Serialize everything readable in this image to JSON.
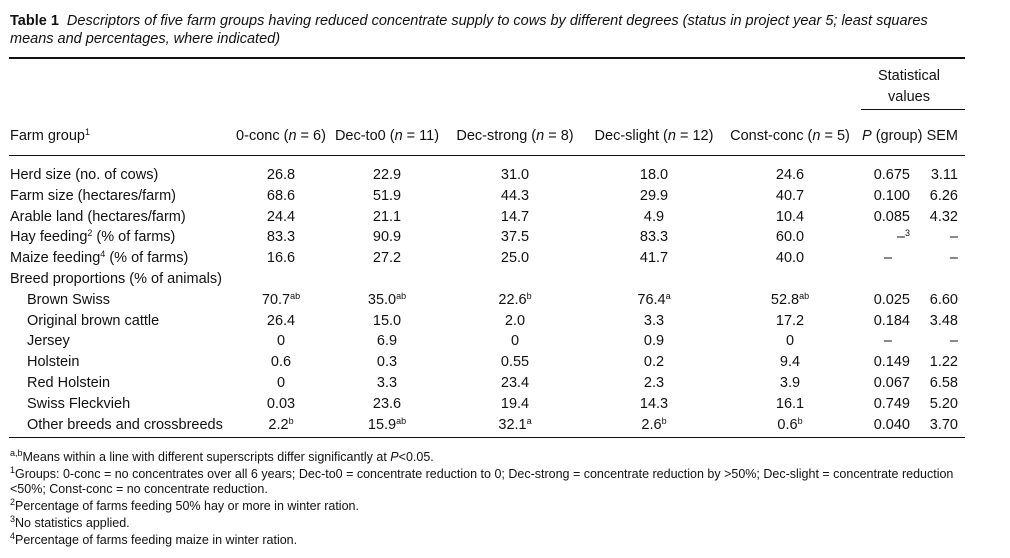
{
  "caption": {
    "label": "Table 1",
    "text": "Descriptors of five farm groups having reduced concentrate supply to cows by different degrees (status in project year 5; least squares means and percentages, where indicated)"
  },
  "header": {
    "stat_group": "Statistical values",
    "stat_line1": "Statistical",
    "stat_line2": "values",
    "farm_group": "Farm group",
    "farm_group_sup": "1",
    "columns": [
      {
        "name": "0-conc",
        "n_label": "n",
        "n_rest": " = 6)"
      },
      {
        "name": "Dec-to0",
        "n_label": "n",
        "n_rest": " = 11)"
      },
      {
        "name": "Dec-strong",
        "n_label": "n",
        "n_rest": " = 8)"
      },
      {
        "name": "Dec-slight",
        "n_label": "n",
        "n_rest": " = 12)"
      },
      {
        "name": "Const-conc",
        "n_label": "n",
        "n_rest": " = 5)"
      }
    ],
    "p_italic": "P",
    "p_rest": " (group)",
    "sem": "SEM"
  },
  "rows": [
    {
      "label": "Herd size (no. of cows)",
      "label_sup": "",
      "label_after": "",
      "indent": false,
      "values": [
        [
          "26.8",
          ""
        ],
        [
          "22.9",
          ""
        ],
        [
          "31.0",
          ""
        ],
        [
          "18.0",
          ""
        ],
        [
          "24.6",
          ""
        ]
      ],
      "p": "0.675",
      "p_sup": "",
      "sem": "3.11"
    },
    {
      "label": "Farm size (hectares/farm)",
      "label_sup": "",
      "label_after": "",
      "indent": false,
      "values": [
        [
          "68.6",
          ""
        ],
        [
          "51.9",
          ""
        ],
        [
          "44.3",
          ""
        ],
        [
          "29.9",
          ""
        ],
        [
          "40.7",
          ""
        ]
      ],
      "p": "0.100",
      "p_sup": "",
      "sem": "6.26"
    },
    {
      "label": "Arable land (hectares/farm)",
      "label_sup": "",
      "label_after": "",
      "indent": false,
      "values": [
        [
          "24.4",
          ""
        ],
        [
          "21.1",
          ""
        ],
        [
          "14.7",
          ""
        ],
        [
          "4.9",
          ""
        ],
        [
          "10.4",
          ""
        ]
      ],
      "p": "0.085",
      "p_sup": "",
      "sem": "4.32"
    },
    {
      "label": "Hay feeding",
      "label_sup": "2",
      "label_after": " (% of farms)",
      "indent": false,
      "values": [
        [
          "83.3",
          ""
        ],
        [
          "90.9",
          ""
        ],
        [
          "37.5",
          ""
        ],
        [
          "83.3",
          ""
        ],
        [
          "60.0",
          ""
        ]
      ],
      "p": "–",
      "p_sup": "3",
      "sem": "–"
    },
    {
      "label": "Maize feeding",
      "label_sup": "4",
      "label_after": " (% of farms)",
      "indent": false,
      "values": [
        [
          "16.6",
          ""
        ],
        [
          "27.2",
          ""
        ],
        [
          "25.0",
          ""
        ],
        [
          "41.7",
          ""
        ],
        [
          "40.0",
          ""
        ]
      ],
      "p": "–",
      "p_sup": "",
      "sem": "–"
    },
    {
      "label": "Breed proportions (% of animals)",
      "label_sup": "",
      "label_after": "",
      "indent": false,
      "values": [
        [
          "",
          ""
        ],
        [
          "",
          ""
        ],
        [
          "",
          ""
        ],
        [
          "",
          ""
        ],
        [
          "",
          ""
        ]
      ],
      "p": "",
      "p_sup": "",
      "sem": ""
    },
    {
      "label": "Brown Swiss",
      "label_sup": "",
      "label_after": "",
      "indent": true,
      "values": [
        [
          "70.7",
          "ab"
        ],
        [
          "35.0",
          "ab"
        ],
        [
          "22.6",
          "b"
        ],
        [
          "76.4",
          "a"
        ],
        [
          "52.8",
          "ab"
        ]
      ],
      "p": "0.025",
      "p_sup": "",
      "sem": "6.60"
    },
    {
      "label": "Original brown cattle",
      "label_sup": "",
      "label_after": "",
      "indent": true,
      "values": [
        [
          "26.4",
          ""
        ],
        [
          "15.0",
          ""
        ],
        [
          "2.0",
          ""
        ],
        [
          "3.3",
          ""
        ],
        [
          "17.2",
          ""
        ]
      ],
      "p": "0.184",
      "p_sup": "",
      "sem": "3.48"
    },
    {
      "label": "Jersey",
      "label_sup": "",
      "label_after": "",
      "indent": true,
      "values": [
        [
          "0",
          ""
        ],
        [
          "6.9",
          ""
        ],
        [
          "0",
          ""
        ],
        [
          "0.9",
          ""
        ],
        [
          "0",
          ""
        ]
      ],
      "p": "–",
      "p_sup": "",
      "sem": "–"
    },
    {
      "label": "Holstein",
      "label_sup": "",
      "label_after": "",
      "indent": true,
      "values": [
        [
          "0.6",
          ""
        ],
        [
          "0.3",
          ""
        ],
        [
          "0.55",
          ""
        ],
        [
          "0.2",
          ""
        ],
        [
          "9.4",
          ""
        ]
      ],
      "p": "0.149",
      "p_sup": "",
      "sem": "1.22"
    },
    {
      "label": "Red Holstein",
      "label_sup": "",
      "label_after": "",
      "indent": true,
      "values": [
        [
          "0",
          ""
        ],
        [
          "3.3",
          ""
        ],
        [
          "23.4",
          ""
        ],
        [
          "2.3",
          ""
        ],
        [
          "3.9",
          ""
        ]
      ],
      "p": "0.067",
      "p_sup": "",
      "sem": "6.58"
    },
    {
      "label": "Swiss Fleckvieh",
      "label_sup": "",
      "label_after": "",
      "indent": true,
      "values": [
        [
          "0.03",
          ""
        ],
        [
          "23.6",
          ""
        ],
        [
          "19.4",
          ""
        ],
        [
          "14.3",
          ""
        ],
        [
          "16.1",
          ""
        ]
      ],
      "p": "0.749",
      "p_sup": "",
      "sem": "5.20"
    },
    {
      "label": "Other breeds and crossbreeds",
      "label_sup": "",
      "label_after": "",
      "indent": true,
      "values": [
        [
          "2.2",
          "b"
        ],
        [
          "15.9",
          "ab"
        ],
        [
          "32.1",
          "a"
        ],
        [
          "2.6",
          "b"
        ],
        [
          "0.6",
          "b"
        ]
      ],
      "p": "0.040",
      "p_sup": "",
      "sem": "3.70"
    }
  ],
  "footnotes": [
    {
      "sup": "a,b",
      "parts": [
        [
          "Means within a line with different superscripts differ significantly at ",
          false
        ],
        [
          "P",
          true
        ],
        [
          "<0.05.",
          false
        ]
      ]
    },
    {
      "sup": "1",
      "parts": [
        [
          "Groups: 0-conc = no concentrates over all 6 years; Dec-to0 = concentrate reduction to 0; Dec-strong = concentrate reduction by >50%; Dec-slight = concentrate reduction <50%; Const-conc = no concentrate reduction.",
          false
        ]
      ]
    },
    {
      "sup": "2",
      "parts": [
        [
          "Percentage of farms feeding 50% hay or more in winter ration.",
          false
        ]
      ]
    },
    {
      "sup": "3",
      "parts": [
        [
          "No statistics applied.",
          false
        ]
      ]
    },
    {
      "sup": "4",
      "parts": [
        [
          "Percentage of farms feeding maize in winter ration.",
          false
        ]
      ]
    }
  ]
}
